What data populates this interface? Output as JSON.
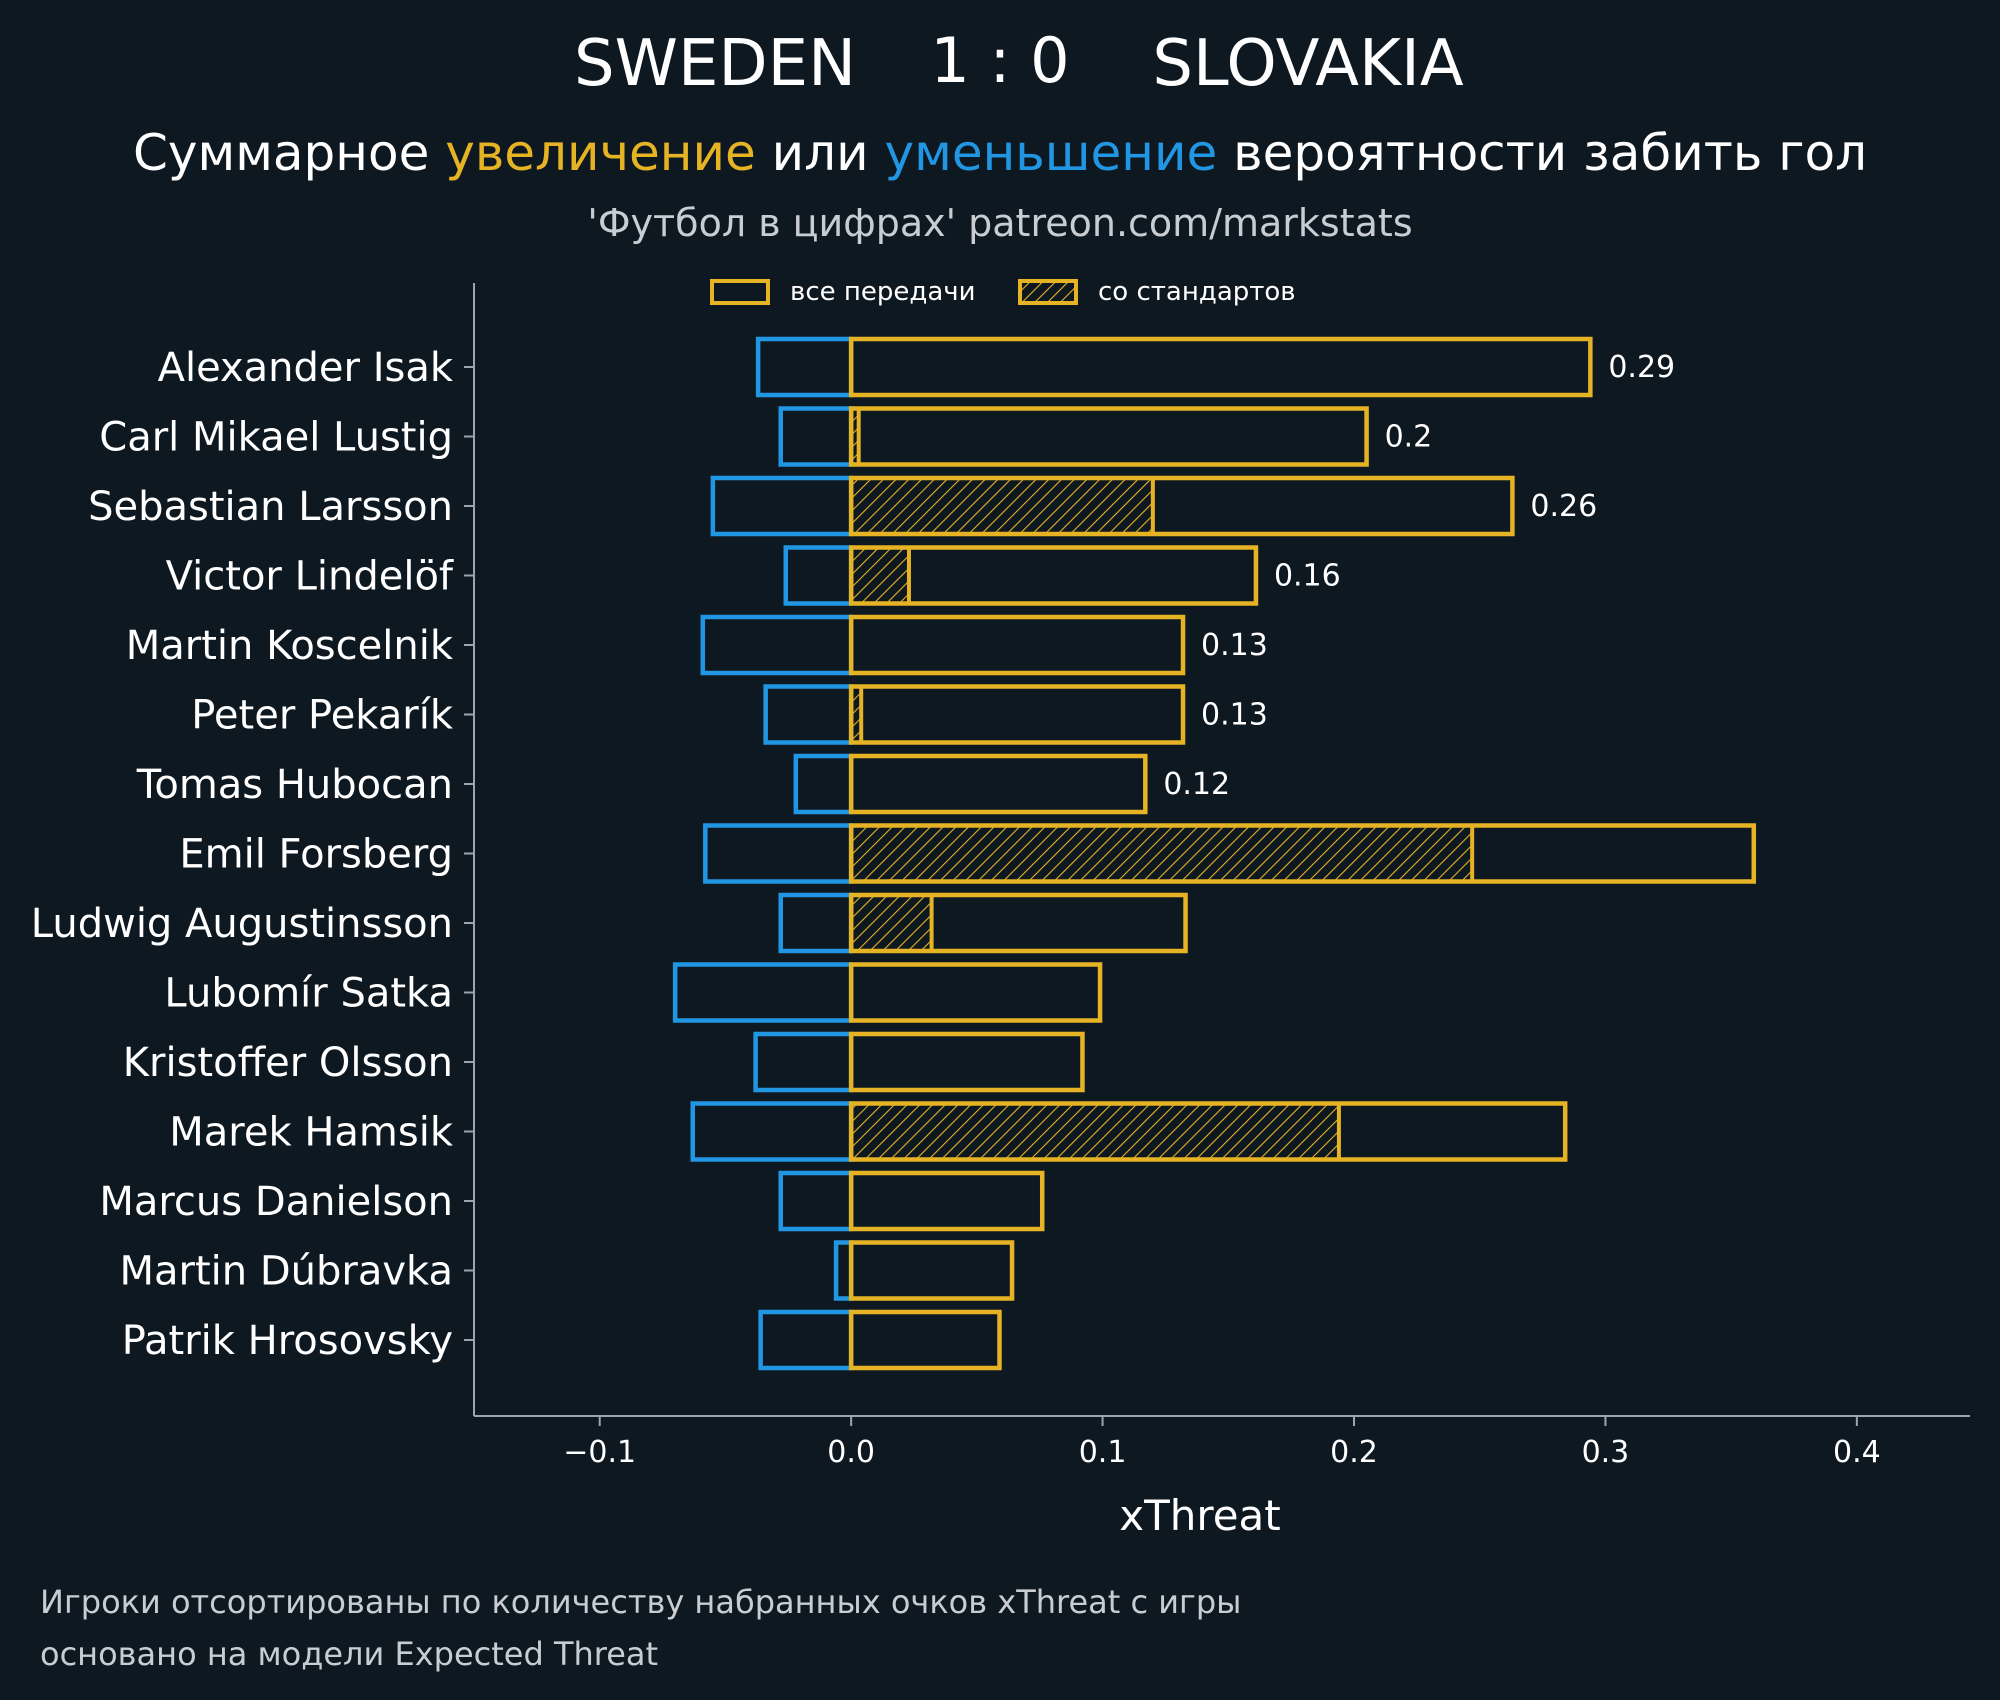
{
  "header": {
    "team_home": "SWEDEN",
    "score": "1 : 0",
    "team_away": "SLOVAKIA",
    "subtitle_part1": "Суммарное ",
    "subtitle_up": "увеличение",
    "subtitle_part2": " или ",
    "subtitle_down": "уменьшение",
    "subtitle_part3": " вероятности забить гол",
    "credit": "'Футбол в цифрах' patreon.com/markstats"
  },
  "legend": {
    "all_passes": "все передачи",
    "set_pieces": "со стандартов"
  },
  "footer": {
    "line1": "Игроки отсортированы по количеству набранных очков xThreat с игры",
    "line2": "основано на модели Expected Threat"
  },
  "colors": {
    "background": "#0e1821",
    "increase": "#e5b323",
    "decrease": "#2196e3",
    "axis": "#9aa5ad",
    "text": "#ffffff",
    "muted": "#c8cdd1"
  },
  "chart_data": {
    "type": "bar",
    "orientation": "horizontal",
    "xlabel": "xThreat",
    "xlim": [
      -0.15,
      0.445
    ],
    "xticks": [
      -0.1,
      0.0,
      0.1,
      0.2,
      0.3,
      0.4
    ],
    "xtick_labels": [
      "−0.1",
      "0.0",
      "0.1",
      "0.2",
      "0.3",
      "0.4"
    ],
    "categories": [
      "Alexander Isak",
      "Carl Mikael Lustig",
      "Sebastian Larsson",
      "Victor Lindelöf",
      "Martin Koscelnik",
      "Peter Pekarík",
      "Tomas Hubocan",
      "Emil Forsberg",
      "Ludwig Augustinsson",
      "Lubomír Satka",
      "Kristoffer Olsson",
      "Marek Hamsik",
      "Marcus Danielson",
      "Martin Dúbravka",
      "Patrik Hrosovsky"
    ],
    "series": [
      {
        "name": "все передачи (увеличение)",
        "values": [
          0.294,
          0.205,
          0.263,
          0.161,
          0.132,
          0.132,
          0.117,
          0.359,
          0.133,
          0.099,
          0.092,
          0.284,
          0.076,
          0.064,
          0.059
        ]
      },
      {
        "name": "со стандартов",
        "values": [
          0,
          0.003,
          0.12,
          0.023,
          0,
          0.004,
          0,
          0.247,
          0.032,
          0,
          0,
          0.194,
          0,
          0,
          0
        ]
      },
      {
        "name": "уменьшение",
        "values": [
          -0.037,
          -0.028,
          -0.055,
          -0.026,
          -0.059,
          -0.034,
          -0.022,
          -0.058,
          -0.028,
          -0.07,
          -0.038,
          -0.063,
          -0.028,
          -0.006,
          -0.036
        ]
      }
    ],
    "data_labels": [
      "0.29",
      "0.2",
      "0.26",
      "0.16",
      "0.13",
      "0.13",
      "0.12",
      "",
      "",
      "",
      "",
      "",
      "",
      "",
      ""
    ]
  }
}
